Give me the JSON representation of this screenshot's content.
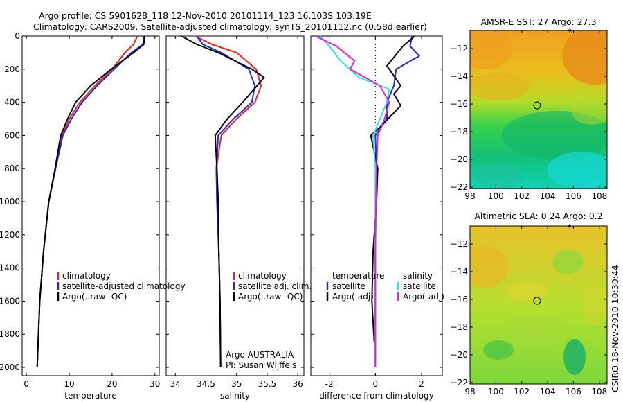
{
  "header": {
    "line1": "Argo profile: CS 5901628_118 12-Nov-2010 20101114_123 16.103S 103.19E",
    "line2": "Climatology: CARS2009. Satellite-adjusted climatology: synTS_20101112.nc (0.58d earlier)"
  },
  "side_note": "CSIRO 18-Nov-2010 10:30:44",
  "colors": {
    "climatology": "#e8231f",
    "satellite": "#1f2bd6",
    "argo": "#000000",
    "sat_cyan": "#2fe0e6",
    "argo_magenta": "#e21fe0"
  },
  "chart_data": [
    {
      "id": "temperature",
      "type": "line",
      "xlabel": "temperature",
      "xlim": [
        -1,
        31
      ],
      "ylim": [
        0,
        2050
      ],
      "xticks": [
        0,
        10,
        20,
        30
      ],
      "yticks": [
        0,
        200,
        400,
        600,
        800,
        1000,
        1200,
        1400,
        1600,
        1800,
        2000
      ],
      "legend": [
        "climatology",
        "satellite-adjusted climatology",
        "Argo(..raw -QC)"
      ],
      "series": [
        {
          "name": "climatology",
          "color": "#e8231f",
          "x": [
            25.9,
            25.0,
            23.0,
            20.0,
            16.0,
            12.5,
            10.0,
            8.3,
            6.8,
            5.2,
            4.0,
            3.1,
            2.5
          ],
          "y": [
            0,
            50,
            100,
            200,
            300,
            400,
            500,
            600,
            800,
            1000,
            1300,
            1600,
            2000
          ]
        },
        {
          "name": "satellite-adjusted climatology",
          "color": "#1f2bd6",
          "x": [
            27.5,
            27.2,
            24.5,
            20.5,
            16.5,
            13.0,
            10.5,
            8.5,
            6.8,
            5.2,
            4.0,
            3.1,
            2.5
          ],
          "y": [
            0,
            50,
            100,
            200,
            300,
            400,
            500,
            600,
            800,
            1000,
            1300,
            1600,
            2000
          ]
        },
        {
          "name": "Argo(..raw -QC)",
          "color": "#000000",
          "x": [
            27.6,
            27.4,
            25.0,
            19.8,
            15.0,
            11.5,
            9.6,
            8.0,
            6.7,
            5.2,
            4.0,
            3.1,
            2.5
          ],
          "y": [
            0,
            50,
            100,
            200,
            300,
            400,
            500,
            600,
            800,
            1000,
            1300,
            1600,
            2000
          ]
        }
      ]
    },
    {
      "id": "salinity",
      "type": "line",
      "xlabel": "salinity",
      "xlim": [
        33.85,
        36.1
      ],
      "ylim": [
        0,
        2050
      ],
      "xticks": [
        34,
        34.5,
        35,
        35.5,
        36
      ],
      "yticks": [
        0,
        200,
        400,
        600,
        800,
        1000,
        1200,
        1400,
        1600,
        1800,
        2000
      ],
      "legend": [
        "climatology",
        "satellite adj. clim.",
        "Argo(..raw -QC)"
      ],
      "annotation": [
        "Argo AUSTRALIA",
        "PI: Susan Wijffels"
      ],
      "series": [
        {
          "name": "climatology",
          "color": "#e8231f",
          "x": [
            34.32,
            34.6,
            35.0,
            35.32,
            35.4,
            35.3,
            35.0,
            34.75,
            34.67,
            34.68,
            34.71,
            34.73,
            34.74
          ],
          "y": [
            0,
            50,
            100,
            200,
            300,
            400,
            500,
            600,
            800,
            1000,
            1300,
            1600,
            2000
          ]
        },
        {
          "name": "satellite adj. clim.",
          "color": "#1f2bd6",
          "x": [
            34.35,
            34.45,
            34.75,
            35.2,
            35.3,
            35.25,
            34.95,
            34.7,
            34.67,
            34.68,
            34.71,
            34.73,
            34.74
          ],
          "y": [
            0,
            50,
            100,
            200,
            300,
            400,
            500,
            600,
            800,
            1000,
            1300,
            1600,
            2000
          ]
        },
        {
          "name": "Argo(..raw -QC)",
          "color": "#000000",
          "x": [
            34.1,
            34.35,
            34.7,
            35.25,
            35.45,
            35.1,
            34.85,
            34.65,
            34.68,
            34.7,
            34.71,
            34.73,
            34.74
          ],
          "y": [
            0,
            50,
            100,
            200,
            250,
            400,
            500,
            600,
            800,
            1000,
            1300,
            1600,
            2000
          ]
        }
      ]
    },
    {
      "id": "difference",
      "type": "line",
      "xlabel": "difference from climatology",
      "xlim": [
        -2.8,
        2.9
      ],
      "ylim": [
        0,
        2050
      ],
      "xticks": [
        -2,
        0,
        2
      ],
      "yticks": [
        0,
        200,
        400,
        600,
        800,
        1000,
        1200,
        1400,
        1600,
        1800,
        2000
      ],
      "legend_left": [
        "temperature",
        "satellite",
        "Argo(-adj)"
      ],
      "legend_right": [
        "salinity",
        "satellite",
        "Argo(-adj)"
      ],
      "series": [
        {
          "name": "satellite",
          "color": "#1f2bd6",
          "x": [
            1.6,
            1.5,
            1.9,
            0.9,
            0.8,
            0.5,
            0.5,
            0.0,
            0.05,
            0.02,
            0.0,
            0.0,
            0.0
          ],
          "y": [
            0,
            60,
            120,
            200,
            300,
            400,
            500,
            600,
            800,
            1000,
            1300,
            1600,
            2000
          ]
        },
        {
          "name": "Argo(-adj)",
          "color": "#000000",
          "x": [
            1.7,
            1.2,
            0.5,
            1.1,
            0.8,
            1.1,
            0.2,
            -0.2,
            0.1,
            0.05,
            -0.1,
            -0.15,
            -0.05
          ],
          "y": [
            0,
            60,
            180,
            300,
            350,
            420,
            550,
            600,
            800,
            1000,
            1300,
            1600,
            1850
          ]
        },
        {
          "name": "satellite",
          "color": "#2fe0e6",
          "x": [
            -2.4,
            -2.0,
            -1.5,
            -0.7,
            0.6,
            0.5,
            0.2,
            -0.1,
            0.0,
            0.0,
            0.0,
            0.0,
            0.0
          ],
          "y": [
            0,
            60,
            150,
            250,
            320,
            400,
            500,
            600,
            800,
            1000,
            1300,
            1600,
            2000
          ]
        },
        {
          "name": "Argo(-adj)",
          "color": "#e21fe0",
          "x": [
            -2.6,
            -1.7,
            -0.9,
            -1.1,
            0.2,
            0.6,
            0.4,
            0.1,
            0.05,
            0.02,
            0.0,
            0.0,
            0.0
          ],
          "y": [
            0,
            60,
            150,
            200,
            300,
            400,
            500,
            600,
            800,
            1000,
            1300,
            1600,
            2000
          ]
        }
      ]
    },
    {
      "id": "sst-map",
      "type": "heatmap",
      "title": "AMSR-E SST: 27 Argo: 27.3",
      "xlim": [
        98,
        108.6
      ],
      "ylim": [
        -22.1,
        -10.7
      ],
      "xticks": [
        98,
        100,
        102,
        104,
        106,
        108
      ],
      "yticks": [
        -12,
        -14,
        -16,
        -18,
        -20,
        -22
      ],
      "marker": {
        "lon": 103.19,
        "lat": -16.103
      },
      "star": {
        "lon": 105.7,
        "lat": -10.8
      }
    },
    {
      "id": "sla-map",
      "type": "heatmap",
      "title": "Altimetric SLA: 0.24 Argo: 0.2",
      "xlim": [
        98,
        108.6
      ],
      "ylim": [
        -22.1,
        -10.7
      ],
      "xticks": [
        98,
        100,
        102,
        104,
        106,
        108
      ],
      "yticks": [
        -12,
        -14,
        -16,
        -18,
        -20,
        -22
      ],
      "marker": {
        "lon": 103.19,
        "lat": -16.103
      },
      "star": {
        "lon": 105.7,
        "lat": -10.8
      }
    }
  ]
}
